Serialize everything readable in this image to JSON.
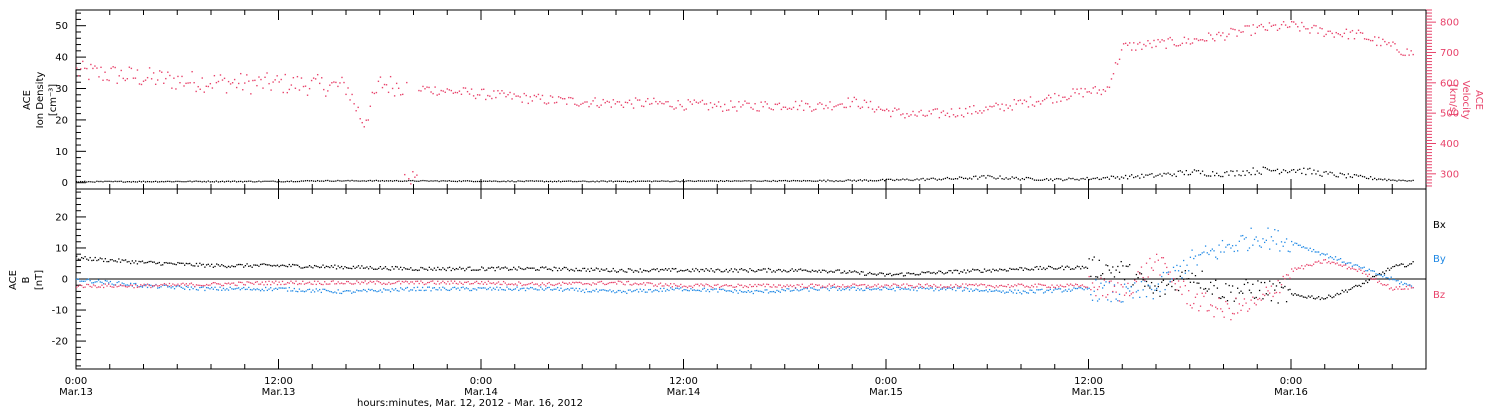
{
  "xaxis": {
    "caption": "hours:minutes, Mar. 12, 2012 - Mar. 16, 2012",
    "tick_times": [
      "0:00",
      "12:00",
      "0:00",
      "12:00",
      "0:00",
      "12:00",
      "0:00"
    ],
    "tick_dates": [
      "Mar.13",
      "Mar.13",
      "Mar.14",
      "Mar.14",
      "Mar.15",
      "Mar.15",
      "Mar.16"
    ],
    "range_hours": [
      0,
      80
    ]
  },
  "colors": {
    "density": "#000000",
    "velocity": "#e8436b",
    "bx": "#000000",
    "by": "#1e88e5",
    "bz": "#e8436b"
  },
  "chart_data": [
    {
      "type": "scatter",
      "panel": "top",
      "ylabel": [
        "ACE",
        "Ion Density",
        "[cm⁻³]"
      ],
      "ylim": [
        -2,
        55
      ],
      "yticks": [
        0,
        10,
        20,
        30,
        40,
        50
      ],
      "y2label": [
        "ACE",
        "Velocity",
        "[km/s]"
      ],
      "y2lim": [
        250,
        840
      ],
      "y2ticks": [
        300,
        400,
        500,
        600,
        700,
        800
      ],
      "density": {
        "hours": [
          0,
          6,
          12,
          14,
          18,
          24,
          30,
          36,
          44,
          48,
          52,
          54,
          56,
          58,
          60,
          62,
          64,
          66,
          68,
          70,
          72,
          74,
          76,
          78,
          80
        ],
        "values": [
          0.5,
          0.6,
          0.6,
          0.8,
          0.8,
          0.7,
          0.6,
          0.7,
          0.8,
          1.0,
          1.5,
          2.0,
          1.5,
          1.2,
          1.5,
          2.0,
          2.5,
          3.5,
          3.0,
          4.0,
          4.5,
          3.0,
          2.0,
          1.0,
          0.8
        ]
      },
      "velocity": {
        "hours": [
          0,
          2,
          4,
          6,
          8,
          10,
          12,
          14,
          16,
          17,
          18,
          20,
          22,
          24,
          26,
          28,
          30,
          32,
          34,
          36,
          38,
          40,
          42,
          44,
          46,
          48,
          49,
          50,
          52,
          54,
          56,
          58,
          60,
          61,
          62,
          64,
          66,
          68,
          70,
          72,
          74,
          76,
          78,
          79
        ],
        "values": [
          640,
          630,
          620,
          610,
          605,
          600,
          600,
          595,
          590,
          470,
          600,
          585,
          575,
          565,
          555,
          545,
          540,
          535,
          535,
          530,
          525,
          525,
          530,
          525,
          540,
          510,
          500,
          495,
          505,
          515,
          535,
          555,
          575,
          575,
          720,
          730,
          740,
          760,
          780,
          790,
          770,
          760,
          720,
          700
        ]
      }
    },
    {
      "type": "line",
      "panel": "bottom",
      "ylabel": [
        "ACE",
        "B",
        "[nT]"
      ],
      "ylim": [
        -29,
        29
      ],
      "yticks": [
        -20,
        -10,
        0,
        10,
        20
      ],
      "hours": [
        0,
        4,
        8,
        12,
        16,
        20,
        24,
        28,
        32,
        36,
        40,
        44,
        48,
        52,
        56,
        60,
        62,
        64,
        66,
        68,
        70,
        72,
        74,
        76,
        78,
        80
      ],
      "series": [
        {
          "name": "Bx",
          "values": [
            7,
            5.5,
            4.5,
            4.5,
            4,
            3.5,
            3.5,
            3.5,
            3,
            3,
            3,
            3,
            1.5,
            2.5,
            3.5,
            4,
            3,
            -4,
            2,
            -4,
            -3,
            -5,
            -6,
            -2,
            4,
            6
          ]
        },
        {
          "name": "By",
          "values": [
            0,
            -2,
            -3,
            -3,
            -4,
            -3,
            -3,
            -3,
            -4,
            -3,
            -4,
            -3,
            -3,
            -3,
            -4,
            -3,
            -5,
            -3,
            6,
            10,
            14,
            12,
            8,
            4,
            0,
            -4
          ]
        },
        {
          "name": "Bz",
          "values": [
            -2,
            -2,
            -1.5,
            -1,
            -1,
            -1,
            -1,
            -1.5,
            -1,
            -2,
            -2,
            -2,
            -2,
            -2,
            -2,
            -2,
            -4,
            6,
            -6,
            -10,
            -8,
            3,
            6,
            3,
            -3,
            -2
          ]
        }
      ]
    }
  ]
}
